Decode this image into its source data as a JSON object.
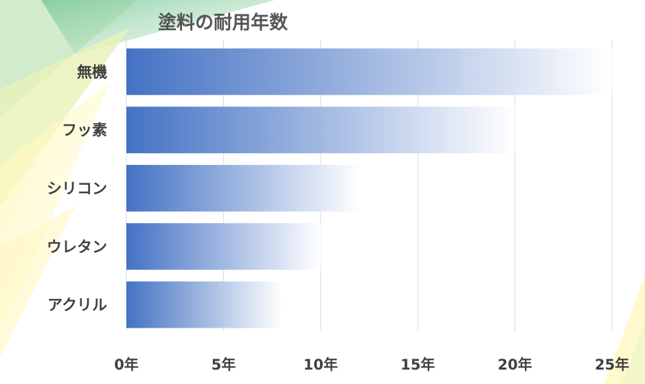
{
  "chart_data": {
    "type": "bar",
    "orientation": "horizontal",
    "title": "塗料の耐用年数",
    "categories": [
      "無機",
      "フッ素",
      "シリコン",
      "ウレタン",
      "アクリル"
    ],
    "values": [
      25,
      20,
      12,
      10,
      8
    ],
    "xlim": [
      0,
      25
    ],
    "xticks": [
      "0年",
      "5年",
      "10年",
      "15年",
      "20年",
      "25年"
    ],
    "grid": "vertical",
    "legend": "none",
    "colors": {
      "bar_start": "#4472C4",
      "bar_end": "#FFFFFF",
      "grid": "#D9D9D9",
      "text": "#404040",
      "title": "#555555"
    }
  }
}
